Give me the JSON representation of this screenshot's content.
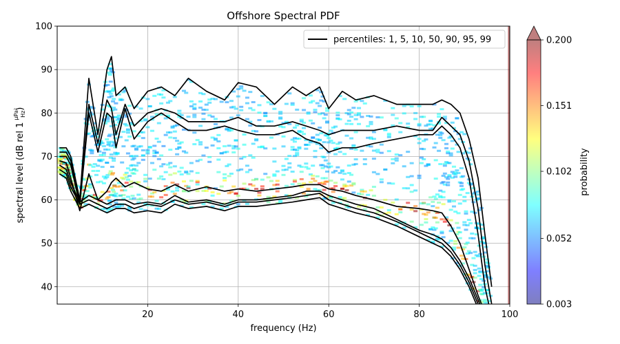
{
  "chart_data": {
    "type": "heatmap",
    "title": "Offshore Spectral PDF",
    "xlabel": "frequency (Hz)",
    "ylabel": "spectral level (dB rel 1",
    "ylabel_unit_num": "μPa²",
    "ylabel_unit_den": "Hz",
    "ylabel_close": ")",
    "xlim": [
      0,
      100
    ],
    "ylim": [
      36,
      100
    ],
    "x_ticks": [
      20,
      40,
      60,
      80,
      100
    ],
    "y_ticks": [
      40,
      50,
      60,
      70,
      80,
      90,
      100
    ],
    "grid": true,
    "legend": {
      "placement": "top-right",
      "label": "percentiles: 1, 5, 10, 50, 90, 95, 99",
      "color": "#000000"
    },
    "colorbar": {
      "label": "probability",
      "min": 0.003,
      "max": 0.2,
      "ticks": [
        "0.003",
        "0.052",
        "0.102",
        "0.151",
        "0.200"
      ],
      "extend": "max",
      "colormap": "jet",
      "alpha": 0.5
    },
    "x": [
      0.5,
      2,
      3,
      5,
      7,
      9,
      11,
      12,
      13,
      15,
      17,
      20,
      23,
      26,
      29,
      33,
      37,
      40,
      44,
      48,
      52,
      55,
      58,
      60,
      63,
      66,
      70,
      75,
      80,
      83,
      85,
      87,
      89,
      91,
      93,
      94.5,
      96
    ],
    "series": [
      {
        "values": [
          66,
          65,
          62,
          58,
          59,
          58,
          57,
          57.5,
          58,
          58,
          57,
          57.5,
          57,
          59,
          58,
          58.5,
          57.5,
          58.5,
          58.5,
          59,
          59.5,
          60,
          60.5,
          59,
          58,
          57,
          56,
          54,
          51.5,
          50,
          49,
          47,
          44,
          40,
          35,
          31,
          28
        ]
      },
      {
        "values": [
          67,
          66,
          63,
          59,
          60,
          59,
          58,
          58.5,
          59,
          59,
          58,
          59,
          58.5,
          60,
          59,
          59.5,
          58.5,
          59.5,
          59.5,
          60,
          60.5,
          61,
          61.5,
          60,
          59,
          58,
          57,
          55,
          52.5,
          51,
          50,
          48,
          45,
          41,
          36,
          32,
          29
        ]
      },
      {
        "values": [
          68,
          67,
          64,
          59.5,
          61,
          60,
          59,
          59.5,
          60,
          60,
          59,
          59.5,
          59,
          61,
          59.5,
          60,
          59,
          60,
          60,
          60.5,
          61,
          62,
          62,
          61,
          60,
          59,
          58,
          55.5,
          53,
          52,
          51,
          49,
          46,
          42,
          37,
          33,
          30
        ]
      },
      {
        "values": [
          69,
          68.5,
          65,
          57.5,
          66,
          60,
          62,
          64,
          65,
          63,
          64,
          62.5,
          62,
          63.5,
          62,
          63,
          62,
          62.5,
          62,
          62.5,
          63,
          63.5,
          63.5,
          62.5,
          62,
          61,
          60,
          58.5,
          58,
          57.5,
          57,
          54,
          50,
          44,
          38,
          34,
          31
        ]
      },
      {
        "values": [
          70,
          70,
          68,
          59,
          80,
          71,
          80,
          79,
          72,
          81,
          74,
          78,
          80,
          78,
          76,
          76,
          77,
          76,
          75,
          75,
          76,
          74,
          73,
          71,
          72,
          72,
          73,
          74,
          75,
          75,
          77,
          75,
          72,
          65,
          52,
          40,
          33
        ]
      },
      {
        "values": [
          71,
          71,
          69,
          59,
          82,
          73,
          83,
          81,
          75,
          82,
          77,
          80,
          81,
          80,
          78,
          78,
          78,
          79,
          77,
          77,
          78,
          77,
          76,
          75,
          76,
          76,
          76,
          77,
          76,
          76,
          79,
          77,
          75,
          69,
          58,
          45,
          36
        ]
      },
      {
        "values": [
          72,
          72,
          70,
          60,
          88,
          75,
          90,
          93,
          84,
          86,
          81,
          85,
          86,
          84,
          88,
          85,
          83,
          87,
          86,
          82,
          86,
          84,
          86,
          81,
          85,
          83,
          84,
          82,
          82,
          82,
          83,
          82,
          80,
          74,
          65,
          52,
          40
        ]
      }
    ]
  }
}
